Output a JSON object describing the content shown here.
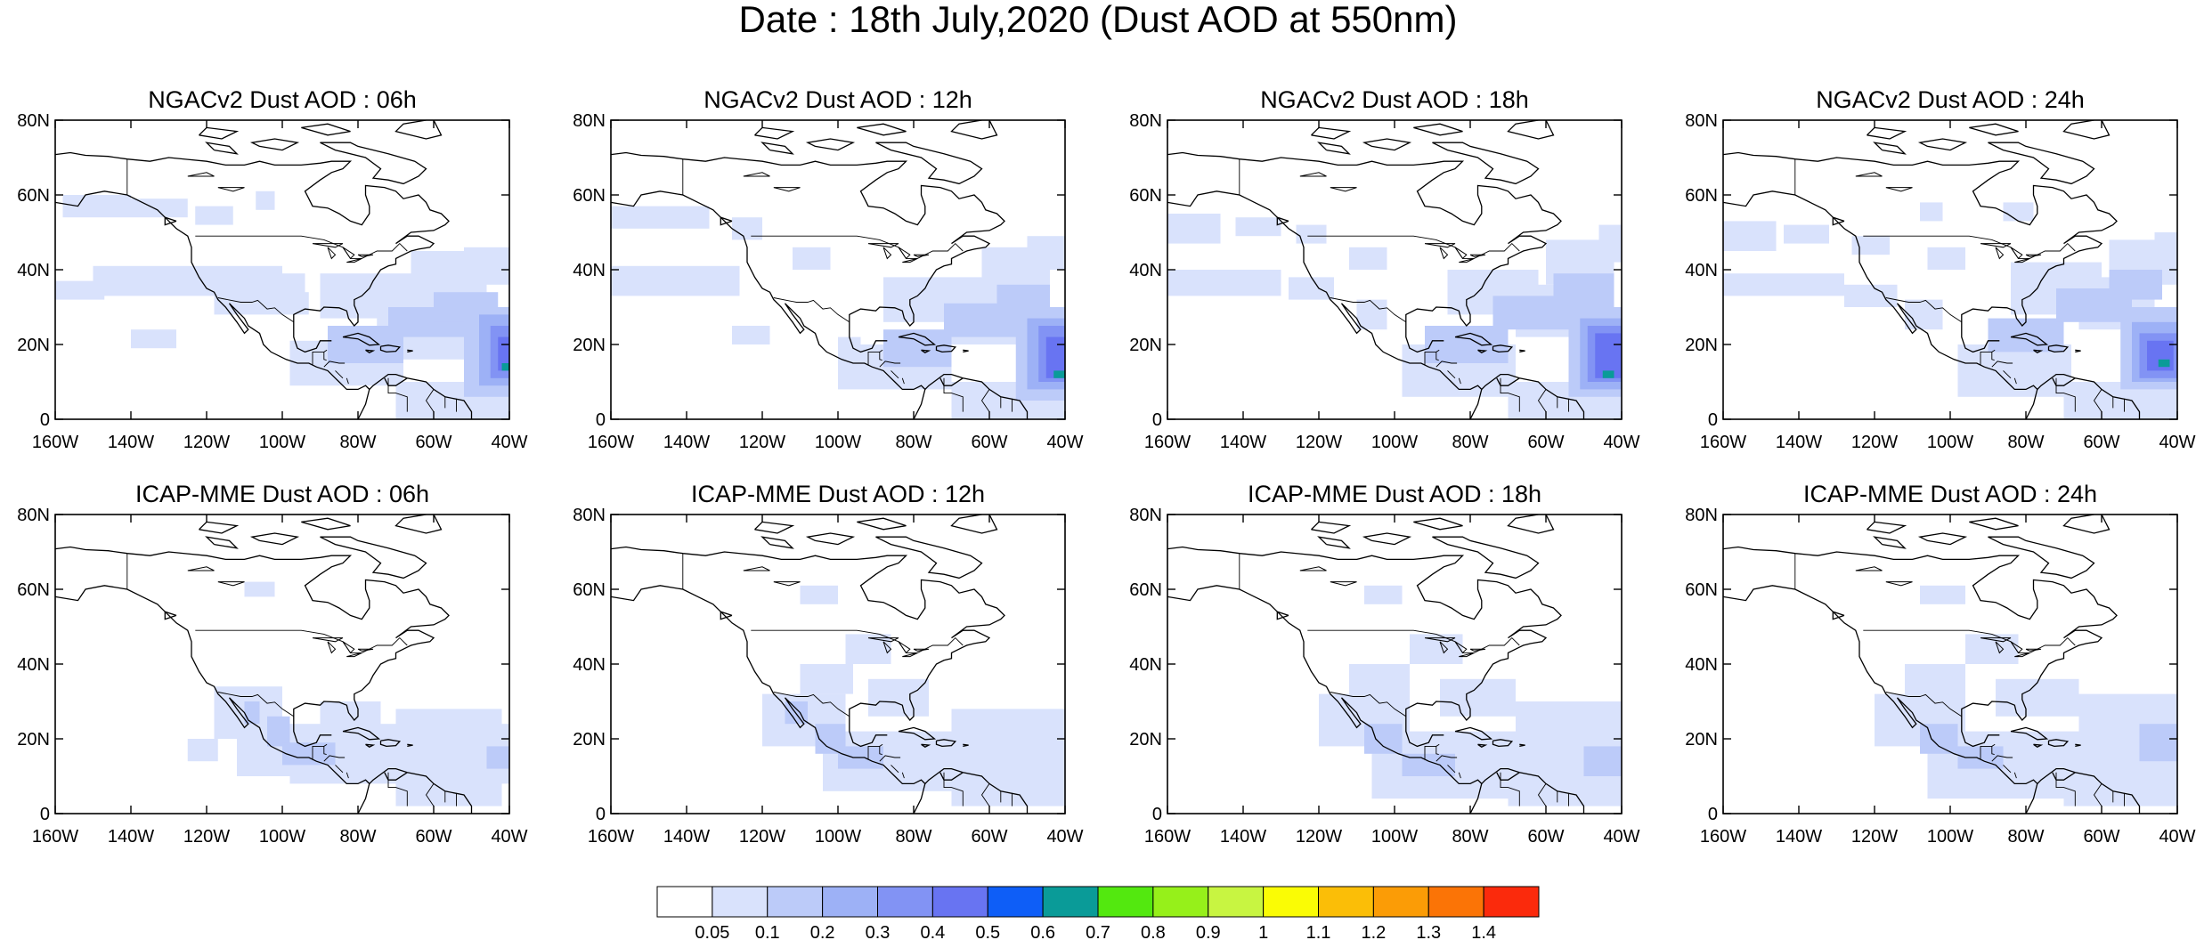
{
  "title": "Date : 18th July,2020 (Dust AOD at 550nm)",
  "map": {
    "lon_labels": [
      "160W",
      "140W",
      "120W",
      "100W",
      "80W",
      "60W",
      "40W"
    ],
    "lat_labels": [
      "0",
      "20N",
      "40N",
      "60N",
      "80N"
    ]
  },
  "panels": [
    {
      "title": "NGACv2 Dust AOD : 06h",
      "dust_cells": [
        {
          "lon": -158,
          "lat": 54,
          "w": 18,
          "h": 6,
          "aod": 0.07
        },
        {
          "lon": -140,
          "lat": 54,
          "w": 15,
          "h": 5,
          "aod": 0.07
        },
        {
          "lon": -123,
          "lat": 52,
          "w": 10,
          "h": 5,
          "aod": 0.07
        },
        {
          "lon": -107,
          "lat": 56,
          "w": 5,
          "h": 5,
          "aod": 0.07
        },
        {
          "lon": -160,
          "lat": 32,
          "w": 13,
          "h": 5,
          "aod": 0.07
        },
        {
          "lon": -150,
          "lat": 33,
          "w": 50,
          "h": 8,
          "aod": 0.07
        },
        {
          "lon": -118,
          "lat": 28,
          "w": 25,
          "h": 6,
          "aod": 0.07
        },
        {
          "lon": -140,
          "lat": 19,
          "w": 12,
          "h": 5,
          "aod": 0.07
        },
        {
          "lon": -104,
          "lat": 33,
          "w": 10,
          "h": 6,
          "aod": 0.07
        },
        {
          "lon": -98,
          "lat": 9,
          "w": 30,
          "h": 12,
          "aod": 0.07
        },
        {
          "lon": -90,
          "lat": 27,
          "w": 30,
          "h": 12,
          "aod": 0.07
        },
        {
          "lon": -75,
          "lat": 16,
          "w": 25,
          "h": 14,
          "aod": 0.07
        },
        {
          "lon": -66,
          "lat": 31,
          "w": 20,
          "h": 14,
          "aod": 0.07
        },
        {
          "lon": -52,
          "lat": 36,
          "w": 12,
          "h": 10,
          "aod": 0.07
        },
        {
          "lon": -70,
          "lat": 0,
          "w": 30,
          "h": 10,
          "aod": 0.07
        },
        {
          "lon": -88,
          "lat": 15,
          "w": 20,
          "h": 10,
          "aod": 0.15
        },
        {
          "lon": -72,
          "lat": 22,
          "w": 20,
          "h": 8,
          "aod": 0.15
        },
        {
          "lon": -60,
          "lat": 26,
          "w": 17,
          "h": 8,
          "aod": 0.15
        },
        {
          "lon": -52,
          "lat": 6,
          "w": 12,
          "h": 24,
          "aod": 0.15
        },
        {
          "lon": -48,
          "lat": 9,
          "w": 8,
          "h": 19,
          "aod": 0.25
        },
        {
          "lon": -45,
          "lat": 11,
          "w": 5,
          "h": 14,
          "aod": 0.35
        },
        {
          "lon": -43,
          "lat": 13,
          "w": 3,
          "h": 9,
          "aod": 0.45
        },
        {
          "lon": -42,
          "lat": 13,
          "w": 2,
          "h": 2,
          "aod": 0.65
        }
      ]
    },
    {
      "title": "NGACv2 Dust AOD : 12h",
      "dust_cells": [
        {
          "lon": -160,
          "lat": 51,
          "w": 26,
          "h": 6,
          "aod": 0.07
        },
        {
          "lon": -128,
          "lat": 48,
          "w": 8,
          "h": 6,
          "aod": 0.07
        },
        {
          "lon": -160,
          "lat": 33,
          "w": 34,
          "h": 8,
          "aod": 0.07
        },
        {
          "lon": -112,
          "lat": 40,
          "w": 10,
          "h": 6,
          "aod": 0.07
        },
        {
          "lon": -128,
          "lat": 20,
          "w": 10,
          "h": 5,
          "aod": 0.07
        },
        {
          "lon": -100,
          "lat": 8,
          "w": 30,
          "h": 12,
          "aod": 0.07
        },
        {
          "lon": -88,
          "lat": 26,
          "w": 26,
          "h": 12,
          "aod": 0.07
        },
        {
          "lon": -70,
          "lat": 20,
          "w": 22,
          "h": 16,
          "aod": 0.07
        },
        {
          "lon": -62,
          "lat": 34,
          "w": 18,
          "h": 12,
          "aod": 0.07
        },
        {
          "lon": -50,
          "lat": 40,
          "w": 10,
          "h": 9,
          "aod": 0.07
        },
        {
          "lon": -70,
          "lat": 0,
          "w": 30,
          "h": 10,
          "aod": 0.07
        },
        {
          "lon": -100,
          "lat": 16,
          "w": 6,
          "h": 6,
          "aod": 0.07
        },
        {
          "lon": -88,
          "lat": 14,
          "w": 18,
          "h": 10,
          "aod": 0.15
        },
        {
          "lon": -72,
          "lat": 22,
          "w": 22,
          "h": 9,
          "aod": 0.15
        },
        {
          "lon": -58,
          "lat": 28,
          "w": 14,
          "h": 8,
          "aod": 0.15
        },
        {
          "lon": -53,
          "lat": 5,
          "w": 13,
          "h": 25,
          "aod": 0.15
        },
        {
          "lon": -50,
          "lat": 8,
          "w": 10,
          "h": 19,
          "aod": 0.25
        },
        {
          "lon": -47,
          "lat": 10,
          "w": 7,
          "h": 15,
          "aod": 0.35
        },
        {
          "lon": -45,
          "lat": 11,
          "w": 5,
          "h": 11,
          "aod": 0.45
        },
        {
          "lon": -43,
          "lat": 11,
          "w": 3,
          "h": 2,
          "aod": 0.65
        }
      ]
    },
    {
      "title": "NGACv2 Dust AOD : 18h",
      "dust_cells": [
        {
          "lon": -160,
          "lat": 47,
          "w": 14,
          "h": 8,
          "aod": 0.07
        },
        {
          "lon": -142,
          "lat": 49,
          "w": 12,
          "h": 5,
          "aod": 0.07
        },
        {
          "lon": -126,
          "lat": 47,
          "w": 8,
          "h": 5,
          "aod": 0.07
        },
        {
          "lon": -160,
          "lat": 33,
          "w": 30,
          "h": 7,
          "aod": 0.07
        },
        {
          "lon": -128,
          "lat": 32,
          "w": 12,
          "h": 6,
          "aod": 0.07
        },
        {
          "lon": -112,
          "lat": 40,
          "w": 10,
          "h": 6,
          "aod": 0.07
        },
        {
          "lon": -110,
          "lat": 24,
          "w": 8,
          "h": 8,
          "aod": 0.07
        },
        {
          "lon": -98,
          "lat": 6,
          "w": 30,
          "h": 14,
          "aod": 0.07
        },
        {
          "lon": -86,
          "lat": 28,
          "w": 24,
          "h": 12,
          "aod": 0.07
        },
        {
          "lon": -68,
          "lat": 22,
          "w": 20,
          "h": 14,
          "aod": 0.07
        },
        {
          "lon": -60,
          "lat": 36,
          "w": 18,
          "h": 12,
          "aod": 0.07
        },
        {
          "lon": -46,
          "lat": 42,
          "w": 6,
          "h": 10,
          "aod": 0.07
        },
        {
          "lon": -70,
          "lat": 0,
          "w": 30,
          "h": 10,
          "aod": 0.07
        },
        {
          "lon": -92,
          "lat": 15,
          "w": 22,
          "h": 10,
          "aod": 0.15
        },
        {
          "lon": -74,
          "lat": 24,
          "w": 22,
          "h": 9,
          "aod": 0.15
        },
        {
          "lon": -58,
          "lat": 30,
          "w": 16,
          "h": 9,
          "aod": 0.15
        },
        {
          "lon": -54,
          "lat": 6,
          "w": 14,
          "h": 24,
          "aod": 0.15
        },
        {
          "lon": -51,
          "lat": 8,
          "w": 11,
          "h": 19,
          "aod": 0.25
        },
        {
          "lon": -49,
          "lat": 10,
          "w": 9,
          "h": 15,
          "aod": 0.35
        },
        {
          "lon": -47,
          "lat": 11,
          "w": 7,
          "h": 12,
          "aod": 0.45
        },
        {
          "lon": -45,
          "lat": 11,
          "w": 3,
          "h": 2,
          "aod": 0.65
        }
      ]
    },
    {
      "title": "NGACv2 Dust AOD : 24h",
      "dust_cells": [
        {
          "lon": -160,
          "lat": 45,
          "w": 14,
          "h": 8,
          "aod": 0.07
        },
        {
          "lon": -144,
          "lat": 47,
          "w": 12,
          "h": 5,
          "aod": 0.07
        },
        {
          "lon": -126,
          "lat": 44,
          "w": 10,
          "h": 5,
          "aod": 0.07
        },
        {
          "lon": -108,
          "lat": 53,
          "w": 6,
          "h": 5,
          "aod": 0.07
        },
        {
          "lon": -86,
          "lat": 53,
          "w": 8,
          "h": 5,
          "aod": 0.07
        },
        {
          "lon": -160,
          "lat": 33,
          "w": 32,
          "h": 6,
          "aod": 0.07
        },
        {
          "lon": -128,
          "lat": 30,
          "w": 14,
          "h": 6,
          "aod": 0.07
        },
        {
          "lon": -106,
          "lat": 40,
          "w": 10,
          "h": 6,
          "aod": 0.07
        },
        {
          "lon": -112,
          "lat": 24,
          "w": 10,
          "h": 8,
          "aod": 0.07
        },
        {
          "lon": -98,
          "lat": 6,
          "w": 30,
          "h": 14,
          "aod": 0.07
        },
        {
          "lon": -84,
          "lat": 28,
          "w": 24,
          "h": 14,
          "aod": 0.07
        },
        {
          "lon": -66,
          "lat": 24,
          "w": 20,
          "h": 14,
          "aod": 0.07
        },
        {
          "lon": -58,
          "lat": 36,
          "w": 18,
          "h": 12,
          "aod": 0.07
        },
        {
          "lon": -46,
          "lat": 40,
          "w": 6,
          "h": 10,
          "aod": 0.07
        },
        {
          "lon": -70,
          "lat": 0,
          "w": 30,
          "h": 10,
          "aod": 0.07
        },
        {
          "lon": -90,
          "lat": 18,
          "w": 20,
          "h": 9,
          "aod": 0.15
        },
        {
          "lon": -72,
          "lat": 26,
          "w": 20,
          "h": 9,
          "aod": 0.15
        },
        {
          "lon": -58,
          "lat": 32,
          "w": 14,
          "h": 8,
          "aod": 0.15
        },
        {
          "lon": -55,
          "lat": 8,
          "w": 15,
          "h": 22,
          "aod": 0.15
        },
        {
          "lon": -52,
          "lat": 10,
          "w": 12,
          "h": 16,
          "aod": 0.25
        },
        {
          "lon": -50,
          "lat": 11,
          "w": 10,
          "h": 12,
          "aod": 0.35
        },
        {
          "lon": -48,
          "lat": 13,
          "w": 7,
          "h": 8,
          "aod": 0.45
        },
        {
          "lon": -45,
          "lat": 14,
          "w": 3,
          "h": 2,
          "aod": 0.65
        }
      ]
    },
    {
      "title": "ICAP-MME Dust AOD : 06h",
      "dust_cells": [
        {
          "lon": -110,
          "lat": 58,
          "w": 8,
          "h": 4,
          "aod": 0.07
        },
        {
          "lon": -118,
          "lat": 20,
          "w": 18,
          "h": 14,
          "aod": 0.07
        },
        {
          "lon": -112,
          "lat": 10,
          "w": 22,
          "h": 10,
          "aod": 0.07
        },
        {
          "lon": -125,
          "lat": 14,
          "w": 8,
          "h": 6,
          "aod": 0.07
        },
        {
          "lon": -98,
          "lat": 8,
          "w": 58,
          "h": 16,
          "aod": 0.07
        },
        {
          "lon": -90,
          "lat": 22,
          "w": 16,
          "h": 8,
          "aod": 0.07
        },
        {
          "lon": -70,
          "lat": 20,
          "w": 28,
          "h": 8,
          "aod": 0.07
        },
        {
          "lon": -70,
          "lat": 2,
          "w": 28,
          "h": 8,
          "aod": 0.07
        },
        {
          "lon": -104,
          "lat": 18,
          "w": 6,
          "h": 8,
          "aod": 0.15
        },
        {
          "lon": -100,
          "lat": 13,
          "w": 14,
          "h": 6,
          "aod": 0.15
        },
        {
          "lon": -110,
          "lat": 24,
          "w": 4,
          "h": 6,
          "aod": 0.15
        },
        {
          "lon": -46,
          "lat": 12,
          "w": 6,
          "h": 6,
          "aod": 0.15
        }
      ]
    },
    {
      "title": "ICAP-MME Dust AOD : 12h",
      "dust_cells": [
        {
          "lon": -110,
          "lat": 56,
          "w": 10,
          "h": 5,
          "aod": 0.07
        },
        {
          "lon": -98,
          "lat": 40,
          "w": 12,
          "h": 8,
          "aod": 0.07
        },
        {
          "lon": -110,
          "lat": 32,
          "w": 14,
          "h": 8,
          "aod": 0.07
        },
        {
          "lon": -120,
          "lat": 18,
          "w": 22,
          "h": 14,
          "aod": 0.07
        },
        {
          "lon": -104,
          "lat": 6,
          "w": 64,
          "h": 16,
          "aod": 0.07
        },
        {
          "lon": -92,
          "lat": 26,
          "w": 16,
          "h": 10,
          "aod": 0.07
        },
        {
          "lon": -70,
          "lat": 18,
          "w": 30,
          "h": 10,
          "aod": 0.07
        },
        {
          "lon": -70,
          "lat": 2,
          "w": 30,
          "h": 8,
          "aod": 0.07
        },
        {
          "lon": -106,
          "lat": 16,
          "w": 8,
          "h": 8,
          "aod": 0.15
        },
        {
          "lon": -100,
          "lat": 12,
          "w": 12,
          "h": 6,
          "aod": 0.15
        },
        {
          "lon": -114,
          "lat": 24,
          "w": 6,
          "h": 6,
          "aod": 0.15
        }
      ]
    },
    {
      "title": "ICAP-MME Dust AOD : 18h",
      "dust_cells": [
        {
          "lon": -108,
          "lat": 56,
          "w": 10,
          "h": 5,
          "aod": 0.07
        },
        {
          "lon": -96,
          "lat": 40,
          "w": 14,
          "h": 8,
          "aod": 0.07
        },
        {
          "lon": -112,
          "lat": 30,
          "w": 16,
          "h": 10,
          "aod": 0.07
        },
        {
          "lon": -120,
          "lat": 18,
          "w": 24,
          "h": 14,
          "aod": 0.07
        },
        {
          "lon": -106,
          "lat": 4,
          "w": 66,
          "h": 18,
          "aod": 0.07
        },
        {
          "lon": -88,
          "lat": 26,
          "w": 20,
          "h": 10,
          "aod": 0.07
        },
        {
          "lon": -68,
          "lat": 18,
          "w": 28,
          "h": 12,
          "aod": 0.07
        },
        {
          "lon": -70,
          "lat": 2,
          "w": 30,
          "h": 8,
          "aod": 0.07
        },
        {
          "lon": -108,
          "lat": 16,
          "w": 10,
          "h": 8,
          "aod": 0.15
        },
        {
          "lon": -98,
          "lat": 10,
          "w": 14,
          "h": 6,
          "aod": 0.15
        },
        {
          "lon": -50,
          "lat": 10,
          "w": 10,
          "h": 8,
          "aod": 0.15
        }
      ]
    },
    {
      "title": "ICAP-MME Dust AOD : 24h",
      "dust_cells": [
        {
          "lon": -108,
          "lat": 56,
          "w": 12,
          "h": 5,
          "aod": 0.07
        },
        {
          "lon": -96,
          "lat": 40,
          "w": 14,
          "h": 8,
          "aod": 0.07
        },
        {
          "lon": -112,
          "lat": 30,
          "w": 16,
          "h": 10,
          "aod": 0.07
        },
        {
          "lon": -120,
          "lat": 18,
          "w": 24,
          "h": 14,
          "aod": 0.07
        },
        {
          "lon": -106,
          "lat": 4,
          "w": 66,
          "h": 18,
          "aod": 0.07
        },
        {
          "lon": -88,
          "lat": 26,
          "w": 22,
          "h": 10,
          "aod": 0.07
        },
        {
          "lon": -66,
          "lat": 18,
          "w": 26,
          "h": 14,
          "aod": 0.07
        },
        {
          "lon": -70,
          "lat": 2,
          "w": 30,
          "h": 8,
          "aod": 0.07
        },
        {
          "lon": -108,
          "lat": 16,
          "w": 10,
          "h": 8,
          "aod": 0.15
        },
        {
          "lon": -98,
          "lat": 12,
          "w": 12,
          "h": 6,
          "aod": 0.15
        },
        {
          "lon": -50,
          "lat": 14,
          "w": 10,
          "h": 10,
          "aod": 0.15
        }
      ]
    }
  ],
  "colorbar": {
    "labels": [
      "0.05",
      "0.1",
      "0.2",
      "0.3",
      "0.4",
      "0.5",
      "0.6",
      "0.7",
      "0.8",
      "0.9",
      "1",
      "1.1",
      "1.2",
      "1.3",
      "1.4"
    ],
    "colors": [
      "#ffffff",
      "#d9e2fc",
      "#bccbf9",
      "#9db1f6",
      "#8293f4",
      "#6874f2",
      "#0e5ef7",
      "#0a9b98",
      "#53e80f",
      "#96f01a",
      "#c8f541",
      "#fafc05",
      "#fbbe07",
      "#fb9c06",
      "#fb7406",
      "#fb2a0c"
    ]
  }
}
